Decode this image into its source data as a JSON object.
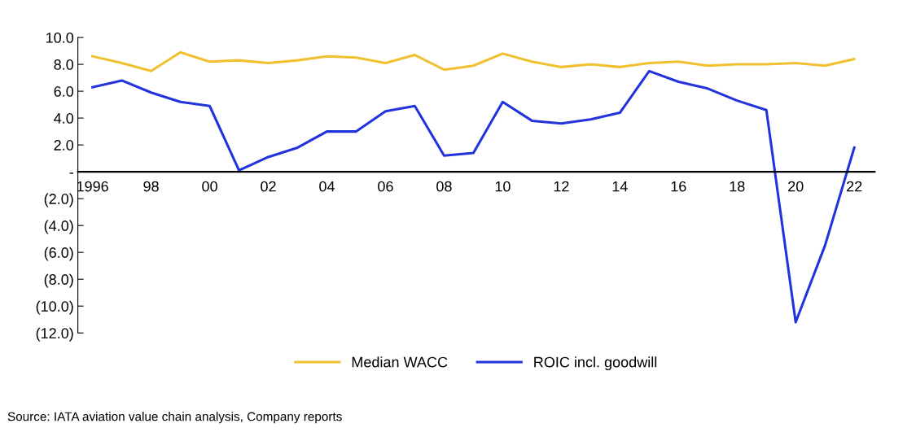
{
  "chart_data": {
    "type": "line",
    "categories": [
      "1996",
      null,
      "98",
      null,
      "00",
      null,
      "02",
      null,
      "04",
      null,
      "06",
      null,
      "08",
      null,
      "10",
      null,
      "12",
      null,
      "14",
      null,
      "16",
      null,
      "18",
      null,
      "20",
      null,
      "22"
    ],
    "series": [
      {
        "name": "Median WACC",
        "color": "#f0c030",
        "values": [
          8.6,
          8.1,
          7.5,
          8.9,
          8.2,
          8.3,
          8.1,
          8.3,
          8.6,
          8.5,
          8.1,
          8.7,
          7.6,
          7.9,
          8.8,
          8.2,
          7.8,
          8.0,
          7.8,
          8.1,
          8.2,
          7.9,
          8.0,
          8.0,
          8.1,
          7.9,
          8.4
        ]
      },
      {
        "name": "ROIC incl. goodwill",
        "color": "#2233dd",
        "values": [
          6.3,
          6.8,
          5.9,
          5.2,
          4.9,
          0.1,
          1.1,
          1.8,
          3.0,
          3.0,
          4.5,
          4.9,
          1.2,
          1.4,
          5.2,
          3.8,
          3.6,
          3.9,
          4.4,
          7.5,
          6.7,
          6.2,
          5.3,
          4.6,
          -11.2,
          -5.5,
          1.8
        ]
      }
    ],
    "ylim": [
      -12,
      10
    ],
    "yticks": [
      {
        "value": -12,
        "label": "(12.0)"
      },
      {
        "value": -10,
        "label": "(10.0)"
      },
      {
        "value": -8,
        "label": "(8.0)"
      },
      {
        "value": -6,
        "label": "(6.0)"
      },
      {
        "value": -4,
        "label": "(4.0)"
      },
      {
        "value": -2,
        "label": "(2.0)"
      },
      {
        "value": 0,
        "label": "-"
      },
      {
        "value": 2,
        "label": "2.0"
      },
      {
        "value": 4,
        "label": "4.0"
      },
      {
        "value": 6,
        "label": "6.0"
      },
      {
        "value": 8,
        "label": "8.0"
      },
      {
        "value": 10,
        "label": "10.0"
      }
    ],
    "grid": false,
    "legend": "bottom",
    "annotations": [
      "Source: IATA aviation value chain analysis, Company reports"
    ]
  }
}
